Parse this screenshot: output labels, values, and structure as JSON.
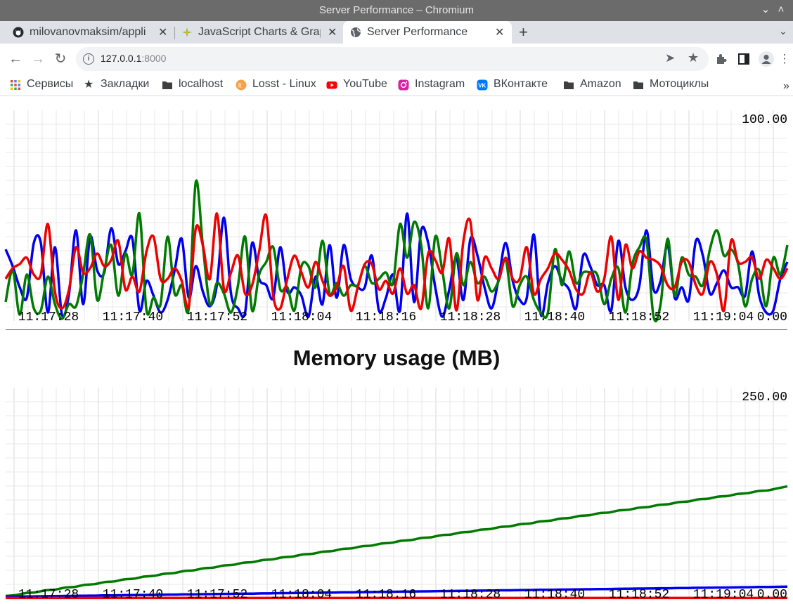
{
  "window": {
    "title": "Server Performance – Chromium"
  },
  "tabs": [
    {
      "label": "milovanovmaksim/appli",
      "icon": "github-icon"
    },
    {
      "label": "JavaScript Charts & Grap",
      "icon": "sparkle-icon"
    },
    {
      "label": "Server Performance",
      "icon": "globe-icon",
      "active": true
    }
  ],
  "address": {
    "host": "127.0.0.1",
    "port": ":8000"
  },
  "bookmarks": [
    {
      "label": "Сервисы",
      "icon": "apps-grid-icon"
    },
    {
      "label": "Закладки",
      "icon": "star-icon"
    },
    {
      "label": "localhost",
      "icon": "folder-icon"
    },
    {
      "label": "Losst - Linux",
      "icon": "losst-icon"
    },
    {
      "label": "YouTube",
      "icon": "youtube-icon"
    },
    {
      "label": "Instagram",
      "icon": "instagram-icon"
    },
    {
      "label": "ВКонтакте",
      "icon": "vk-icon"
    },
    {
      "label": "Amazon",
      "icon": "folder-icon"
    },
    {
      "label": "Мотоциклы",
      "icon": "folder-icon"
    }
  ],
  "colors": {
    "blue": "#0000ee",
    "green": "#007a00",
    "red": "#ee0000",
    "grid": "#e8e8e8"
  },
  "chart_data": [
    {
      "type": "line",
      "title": "",
      "ylim": [
        0,
        100
      ],
      "ymax_label": "100.00",
      "ymin_label": "0.00",
      "x_tick_labels": [
        "11:17:28",
        "11:17:40",
        "11:17:52",
        "11:18:04",
        "11:18:16",
        "11:18:28",
        "11:18:40",
        "11:18:52",
        "11:19:04"
      ],
      "series": [
        {
          "color": "blue",
          "values": [
            34,
            26,
            16,
            11,
            37,
            37,
            4,
            35,
            3,
            13,
            43,
            8,
            40,
            24,
            23,
            44,
            27,
            33,
            39,
            5,
            19,
            12,
            4,
            10,
            24,
            39,
            11,
            26,
            14,
            7,
            17,
            49,
            13,
            6,
            4,
            37,
            20,
            17,
            11,
            35,
            14,
            16,
            12,
            2,
            21,
            8,
            36,
            11,
            36,
            20,
            16,
            16,
            31,
            5,
            11,
            22,
            5,
            51,
            9,
            43,
            37,
            16,
            2,
            15,
            30,
            10,
            39,
            31,
            16,
            6,
            20,
            37,
            19,
            10,
            11,
            41,
            3,
            18,
            26,
            19,
            15,
            6,
            31,
            26,
            17,
            17,
            5,
            38,
            16,
            10,
            17,
            43,
            15,
            19,
            36,
            11,
            16,
            10,
            38,
            31,
            13,
            18,
            24,
            16,
            16,
            12,
            33,
            12,
            4,
            5,
            20,
            28
          ]
        },
        {
          "color": "green",
          "values": [
            9,
            24,
            3,
            22,
            6,
            5,
            21,
            8,
            1,
            8,
            7,
            22,
            41,
            10,
            24,
            36,
            12,
            32,
            22,
            51,
            5,
            11,
            8,
            40,
            13,
            17,
            6,
            66,
            36,
            8,
            18,
            13,
            4,
            17,
            40,
            5,
            22,
            28,
            35,
            15,
            16,
            5,
            26,
            26,
            16,
            38,
            13,
            18,
            12,
            17,
            17,
            26,
            18,
            20,
            23,
            18,
            46,
            30,
            47,
            36,
            6,
            40,
            24,
            6,
            32,
            17,
            28,
            18,
            21,
            14,
            19,
            29,
            7,
            17,
            21,
            10,
            4,
            4,
            34,
            17,
            33,
            18,
            23,
            23,
            22,
            8,
            20,
            25,
            4,
            27,
            35,
            38,
            2,
            8,
            39,
            12,
            30,
            22,
            21,
            17,
            34,
            43,
            31,
            34,
            27,
            7,
            20,
            24,
            7,
            30,
            22,
            36
          ]
        },
        {
          "color": "red",
          "values": [
            20,
            25,
            27,
            30,
            22,
            22,
            46,
            14,
            6,
            15,
            35,
            23,
            25,
            32,
            26,
            29,
            38,
            15,
            21,
            14,
            33,
            40,
            20,
            20,
            25,
            19,
            7,
            44,
            36,
            20,
            51,
            15,
            23,
            31,
            13,
            17,
            33,
            50,
            12,
            6,
            20,
            31,
            23,
            16,
            28,
            19,
            12,
            16,
            26,
            5,
            16,
            27,
            27,
            15,
            19,
            13,
            25,
            13,
            17,
            6,
            32,
            29,
            23,
            39,
            5,
            38,
            47,
            10,
            30,
            25,
            20,
            30,
            20,
            20,
            35,
            13,
            20,
            25,
            32,
            29,
            24,
            15,
            13,
            23,
            14,
            20,
            40,
            10,
            36,
            25,
            33,
            30,
            29,
            26,
            17,
            16,
            28,
            28,
            17,
            13,
            28,
            22,
            5,
            38,
            28,
            28,
            30,
            20,
            29,
            25,
            20,
            25
          ]
        }
      ]
    },
    {
      "type": "line",
      "title": "Memory usage (MB)",
      "ylim": [
        0,
        250
      ],
      "ymax_label": "250.00",
      "ymin_label": "0.00",
      "x_tick_labels": [
        "11:17:28",
        "11:17:40",
        "11:17:52",
        "11:18:04",
        "11:18:16",
        "11:18:28",
        "11:18:40",
        "11:18:52",
        "11:19:04"
      ],
      "series": [
        {
          "color": "green",
          "start": 3,
          "end": 133
        },
        {
          "color": "blue",
          "start": 2,
          "end": 14
        },
        {
          "color": "red",
          "start": 0.5,
          "end": 0.5
        }
      ]
    }
  ]
}
